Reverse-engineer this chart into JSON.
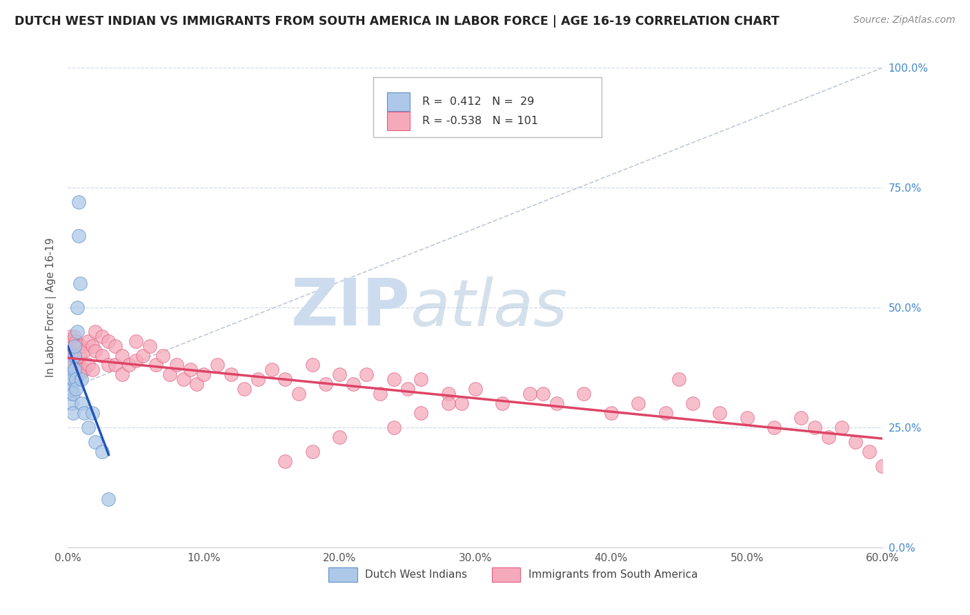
{
  "title": "DUTCH WEST INDIAN VS IMMIGRANTS FROM SOUTH AMERICA IN LABOR FORCE | AGE 16-19 CORRELATION CHART",
  "source": "Source: ZipAtlas.com",
  "ylabel": "In Labor Force | Age 16-19",
  "xlim": [
    0.0,
    0.6
  ],
  "ylim": [
    0.0,
    1.0
  ],
  "xtick_labels": [
    "0.0%",
    "10.0%",
    "20.0%",
    "30.0%",
    "40.0%",
    "50.0%",
    "60.0%"
  ],
  "xtick_vals": [
    0.0,
    0.1,
    0.2,
    0.3,
    0.4,
    0.5,
    0.6
  ],
  "ytick_labels_right": [
    "0.0%",
    "25.0%",
    "50.0%",
    "75.0%",
    "100.0%"
  ],
  "ytick_vals": [
    0.0,
    0.25,
    0.5,
    0.75,
    1.0
  ],
  "blue_R": 0.412,
  "blue_N": 29,
  "pink_R": -0.538,
  "pink_N": 101,
  "blue_color": "#adc8e8",
  "pink_color": "#f5aabb",
  "blue_edge_color": "#6090c8",
  "pink_edge_color": "#e06080",
  "blue_line_color": "#2255bb",
  "pink_line_color": "#dd4466",
  "ref_line_color": "#c0c8d8",
  "watermark_color": "#ccdcee",
  "legend_blue_label": "Dutch West Indians",
  "legend_pink_label": "Immigrants from South America",
  "blue_x": [
    0.001,
    0.001,
    0.002,
    0.002,
    0.002,
    0.003,
    0.003,
    0.003,
    0.004,
    0.004,
    0.004,
    0.005,
    0.005,
    0.005,
    0.006,
    0.006,
    0.007,
    0.007,
    0.008,
    0.008,
    0.009,
    0.01,
    0.01,
    0.012,
    0.015,
    0.018,
    0.02,
    0.025,
    0.03
  ],
  "blue_y": [
    0.35,
    0.33,
    0.36,
    0.32,
    0.38,
    0.34,
    0.33,
    0.3,
    0.35,
    0.32,
    0.28,
    0.4,
    0.37,
    0.42,
    0.35,
    0.33,
    0.5,
    0.45,
    0.65,
    0.72,
    0.55,
    0.35,
    0.3,
    0.28,
    0.25,
    0.28,
    0.22,
    0.2,
    0.1
  ],
  "pink_x": [
    0.001,
    0.001,
    0.001,
    0.002,
    0.002,
    0.002,
    0.002,
    0.003,
    0.003,
    0.003,
    0.004,
    0.004,
    0.004,
    0.005,
    0.005,
    0.005,
    0.006,
    0.006,
    0.006,
    0.007,
    0.007,
    0.008,
    0.008,
    0.009,
    0.009,
    0.01,
    0.01,
    0.012,
    0.012,
    0.015,
    0.015,
    0.018,
    0.018,
    0.02,
    0.02,
    0.025,
    0.025,
    0.03,
    0.03,
    0.035,
    0.035,
    0.04,
    0.04,
    0.045,
    0.05,
    0.05,
    0.055,
    0.06,
    0.065,
    0.07,
    0.075,
    0.08,
    0.085,
    0.09,
    0.095,
    0.1,
    0.11,
    0.12,
    0.13,
    0.14,
    0.15,
    0.16,
    0.17,
    0.18,
    0.19,
    0.2,
    0.21,
    0.22,
    0.23,
    0.24,
    0.25,
    0.26,
    0.28,
    0.29,
    0.3,
    0.32,
    0.34,
    0.36,
    0.38,
    0.4,
    0.42,
    0.44,
    0.46,
    0.48,
    0.5,
    0.52,
    0.54,
    0.55,
    0.56,
    0.57,
    0.58,
    0.59,
    0.6,
    0.45,
    0.35,
    0.28,
    0.26,
    0.24,
    0.2,
    0.18,
    0.16
  ],
  "pink_y": [
    0.42,
    0.38,
    0.35,
    0.44,
    0.4,
    0.37,
    0.33,
    0.43,
    0.4,
    0.36,
    0.42,
    0.38,
    0.35,
    0.44,
    0.4,
    0.36,
    0.43,
    0.39,
    0.35,
    0.42,
    0.38,
    0.42,
    0.38,
    0.4,
    0.36,
    0.42,
    0.37,
    0.41,
    0.37,
    0.43,
    0.38,
    0.42,
    0.37,
    0.41,
    0.45,
    0.44,
    0.4,
    0.43,
    0.38,
    0.42,
    0.38,
    0.4,
    0.36,
    0.38,
    0.43,
    0.39,
    0.4,
    0.42,
    0.38,
    0.4,
    0.36,
    0.38,
    0.35,
    0.37,
    0.34,
    0.36,
    0.38,
    0.36,
    0.33,
    0.35,
    0.37,
    0.35,
    0.32,
    0.38,
    0.34,
    0.36,
    0.34,
    0.36,
    0.32,
    0.35,
    0.33,
    0.35,
    0.32,
    0.3,
    0.33,
    0.3,
    0.32,
    0.3,
    0.32,
    0.28,
    0.3,
    0.28,
    0.3,
    0.28,
    0.27,
    0.25,
    0.27,
    0.25,
    0.23,
    0.25,
    0.22,
    0.2,
    0.17,
    0.35,
    0.32,
    0.3,
    0.28,
    0.25,
    0.23,
    0.2,
    0.18
  ],
  "background_color": "#ffffff",
  "grid_color": "#d0d8e8"
}
